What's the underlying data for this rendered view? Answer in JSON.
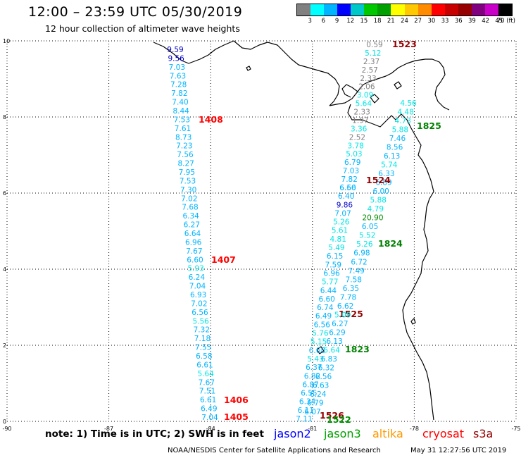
{
  "title": "12:00 – 23:59 UTC 05/30/2019",
  "subtitle": "12 hour collection of altimeter wave heights",
  "legend": {
    "colors": [
      "#808080",
      "#00ffff",
      "#00b4ff",
      "#0000ff",
      "#00c8c8",
      "#00c800",
      "#00a000",
      "#ffff00",
      "#ffc800",
      "#ff8c00",
      "#ff0000",
      "#c80000",
      "#960000",
      "#800080",
      "#c800c8",
      "#000000"
    ],
    "labels": [
      "3",
      "6",
      "9",
      "12",
      "15",
      "18",
      "21",
      "24",
      "27",
      "30",
      "33",
      "36",
      "39",
      "42",
      "45",
      "70 (ft)"
    ]
  },
  "axes": {
    "lon_labels": [
      "-90",
      "-87",
      "-84",
      "-81",
      "-78",
      "-75"
    ],
    "lat_labels": [
      "0",
      "2",
      "4",
      "6",
      "8",
      "10"
    ]
  },
  "tracks": [
    {
      "id": "track-1405-1408",
      "satellite": "jason3",
      "values": [
        "9.59",
        "9.56",
        "7.03",
        "7.63",
        "7.28",
        "7.82",
        "7.40",
        "8.44",
        "7.53",
        "7.61",
        "8.73",
        "7.23",
        "7.56",
        "8.27",
        "7.95",
        "7.53",
        "7.30",
        "7.02",
        "7.68",
        "6.34",
        "6.27",
        "6.64",
        "6.96",
        "7.67",
        "6.60",
        "5.93",
        "6.24",
        "7.04",
        "6.93",
        "7.02",
        "6.56",
        "5.56",
        "7.32",
        "7.18",
        "7.55",
        "6.58",
        "6.61",
        "5.64",
        "7.67",
        "7.51",
        "6.61",
        "6.49",
        "7.04"
      ],
      "times": [
        {
          "label": "1408",
          "color": "#ff0000"
        },
        {
          "label": "1407",
          "color": "#ff0000"
        },
        {
          "label": "1406",
          "color": "#ff0000"
        },
        {
          "label": "1405",
          "color": "#ff0000"
        }
      ]
    },
    {
      "id": "track-1522-1525",
      "satellite": "jason3",
      "values": [
        "6.60",
        "6.40",
        "9.86",
        "7.07",
        "5.26",
        "5.61",
        "4.81",
        "5.49",
        "6.15",
        "7.59",
        "6.96",
        "5.77",
        "6.44",
        "6.60",
        "6.74",
        "6.49",
        "6.56",
        "5.76",
        "5.15",
        "6.68",
        "5.43",
        "6.37",
        "6.82",
        "6.87",
        "6.55",
        "6.34",
        "6.11",
        "7.11"
      ],
      "times": [
        {
          "label": "1525",
          "color": "#960000"
        },
        {
          "label": "1526",
          "color": "#960000"
        },
        {
          "label": "1522",
          "color": "#009000"
        }
      ]
    },
    {
      "id": "track-1823-1825",
      "satellite": "jason3",
      "values": [
        "4.56",
        "4.48",
        "4.73",
        "5.88",
        "7.46",
        "8.56",
        "6.13",
        "5.74",
        "6.33",
        "6.89",
        "6.00",
        "5.88",
        "4.79",
        "20.90",
        "6.05",
        "5.52",
        "5.26",
        "6.98",
        "6.72",
        "7.49",
        "7.58",
        "6.35",
        "7.78",
        "6.62",
        "5.09",
        "6.27",
        "6.29",
        "6.13",
        "5.64",
        "6.83",
        "6.32",
        "6.56",
        "6.63",
        "6.24",
        "6.79",
        "6.07"
      ],
      "times": [
        {
          "label": "1825",
          "color": "#008000"
        },
        {
          "label": "1524",
          "color": "#960000"
        },
        {
          "label": "1824",
          "color": "#008000"
        },
        {
          "label": "1823",
          "color": "#008000"
        }
      ]
    },
    {
      "id": "track-1523",
      "satellite": "other",
      "values": [
        "0.59",
        "5.12",
        "2.37",
        "2.57",
        "2.33",
        "2.06",
        "3.09",
        "5.64",
        "2.33",
        "1.97",
        "3.36",
        "2.52",
        "3.78",
        "5.03",
        "6.79",
        "7.03",
        "7.82",
        "6.56"
      ],
      "times": [
        {
          "label": "1523",
          "color": "#960000"
        }
      ]
    }
  ],
  "note": "note:  1) Time is in UTC;  2) SWH is in feet",
  "satellites": [
    {
      "name": "jason2",
      "color": "#0000ff"
    },
    {
      "name": "jason3",
      "color": "#00a000"
    },
    {
      "name": "altika",
      "color": "#ff9900"
    },
    {
      "name": "cryosat",
      "color": "#ff0000"
    },
    {
      "name": "s3a",
      "color": "#960000"
    }
  ],
  "footer": "NOAA/NESDIS Center for Satellite Applications and Research",
  "footer_time": "May 31 12:27:56 UTC 2019"
}
